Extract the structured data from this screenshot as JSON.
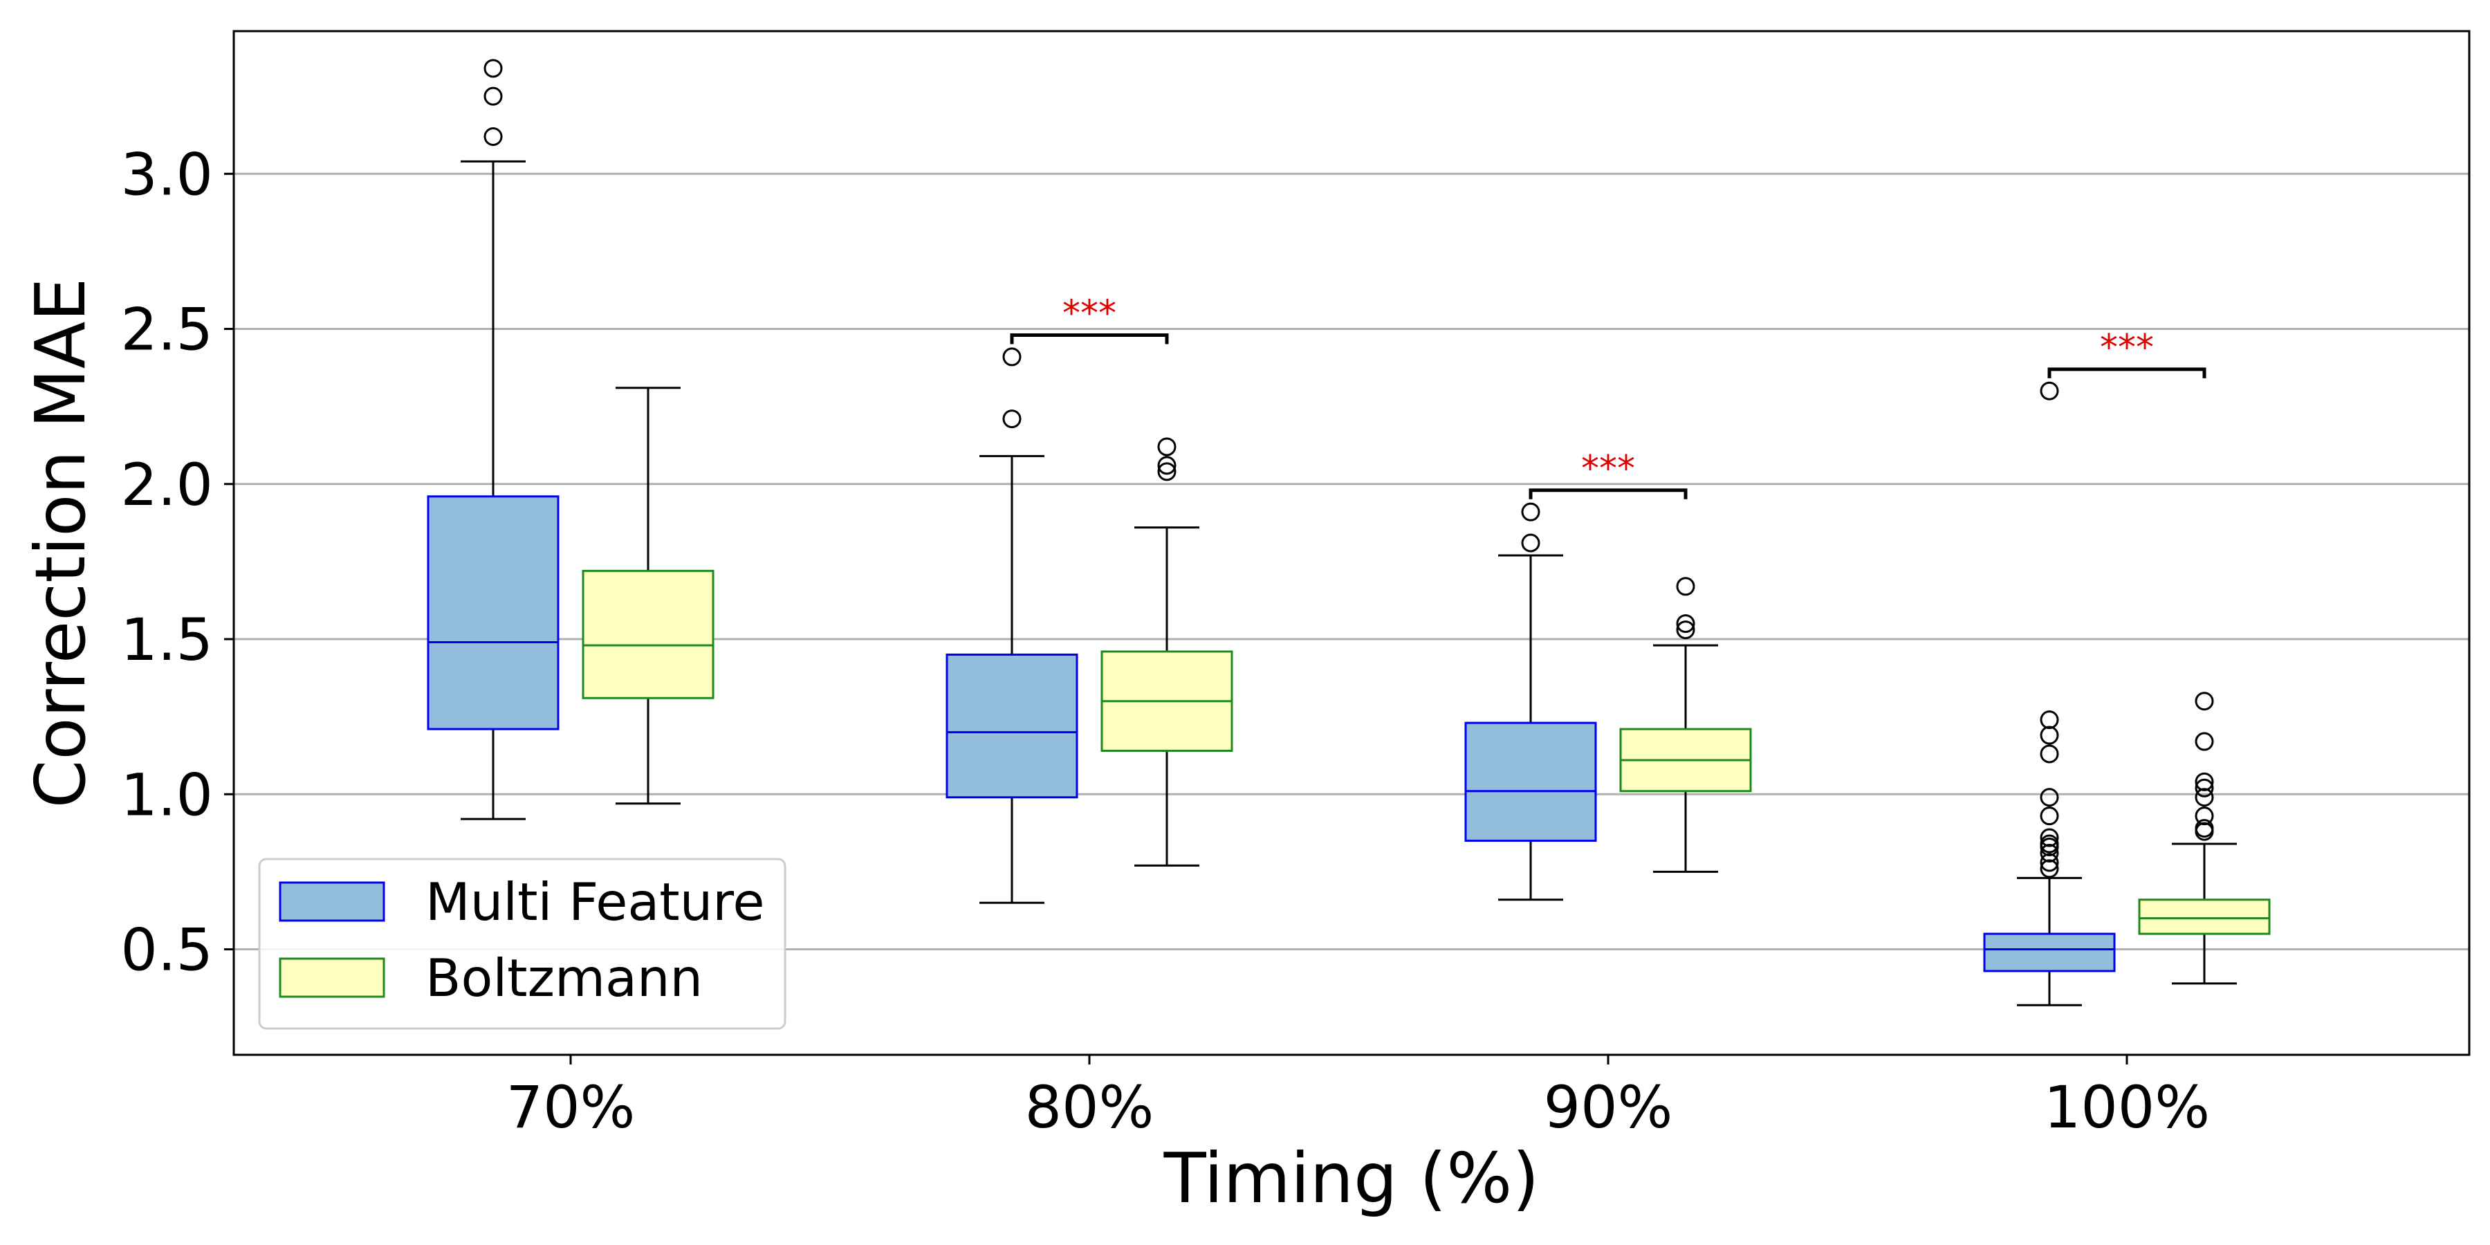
{
  "chart_data": {
    "type": "box",
    "title": "",
    "xlabel": "Timing (%)",
    "ylabel": "Correction MAE",
    "categories": [
      "70%",
      "80%",
      "90%",
      "100%"
    ],
    "ylim": [
      0.16,
      3.46
    ],
    "yticks": [
      0.5,
      1.0,
      1.5,
      2.0,
      2.5,
      3.0
    ],
    "ytick_labels": [
      "0.5",
      "1.0",
      "1.5",
      "2.0",
      "2.5",
      "3.0"
    ],
    "grid": "y",
    "legend_position": "lower-left",
    "series": [
      {
        "name": "Multi Feature",
        "fill": "#93bedb",
        "edge": "#0000ee",
        "median_color": "#0000ee",
        "boxes": [
          {
            "whislo": 0.92,
            "q1": 1.21,
            "med": 1.49,
            "q3": 1.96,
            "whishi": 3.04,
            "fliers": [
              3.12,
              3.25,
              3.34
            ]
          },
          {
            "whislo": 0.65,
            "q1": 0.99,
            "med": 1.2,
            "q3": 1.45,
            "whishi": 2.09,
            "fliers": [
              2.21,
              2.41
            ]
          },
          {
            "whislo": 0.66,
            "q1": 0.85,
            "med": 1.01,
            "q3": 1.23,
            "whishi": 1.77,
            "fliers": [
              1.81,
              1.91
            ]
          },
          {
            "whislo": 0.32,
            "q1": 0.43,
            "med": 0.5,
            "q3": 0.55,
            "whishi": 0.73,
            "fliers": [
              0.76,
              0.78,
              0.81,
              0.83,
              0.84,
              0.86,
              0.93,
              0.99,
              1.13,
              1.19,
              1.24,
              2.3
            ]
          }
        ]
      },
      {
        "name": "Boltzmann",
        "fill": "#ffffc0",
        "edge": "#1e8a1e",
        "median_color": "#1e8a1e",
        "boxes": [
          {
            "whislo": 0.97,
            "q1": 1.31,
            "med": 1.48,
            "q3": 1.72,
            "whishi": 2.31,
            "fliers": []
          },
          {
            "whislo": 0.77,
            "q1": 1.14,
            "med": 1.3,
            "q3": 1.46,
            "whishi": 1.86,
            "fliers": [
              2.04,
              2.06,
              2.12
            ]
          },
          {
            "whislo": 0.75,
            "q1": 1.01,
            "med": 1.11,
            "q3": 1.21,
            "whishi": 1.48,
            "fliers": [
              1.53,
              1.55,
              1.67
            ]
          },
          {
            "whislo": 0.39,
            "q1": 0.55,
            "med": 0.6,
            "q3": 0.66,
            "whishi": 0.84,
            "fliers": [
              0.88,
              0.89,
              0.93,
              0.99,
              1.02,
              1.04,
              1.17,
              1.3
            ]
          }
        ]
      }
    ],
    "significance": [
      {
        "category": "80%",
        "y": 2.48,
        "label": "***"
      },
      {
        "category": "90%",
        "y": 1.98,
        "label": "***"
      },
      {
        "category": "100%",
        "y": 2.37,
        "label": "***"
      }
    ]
  }
}
